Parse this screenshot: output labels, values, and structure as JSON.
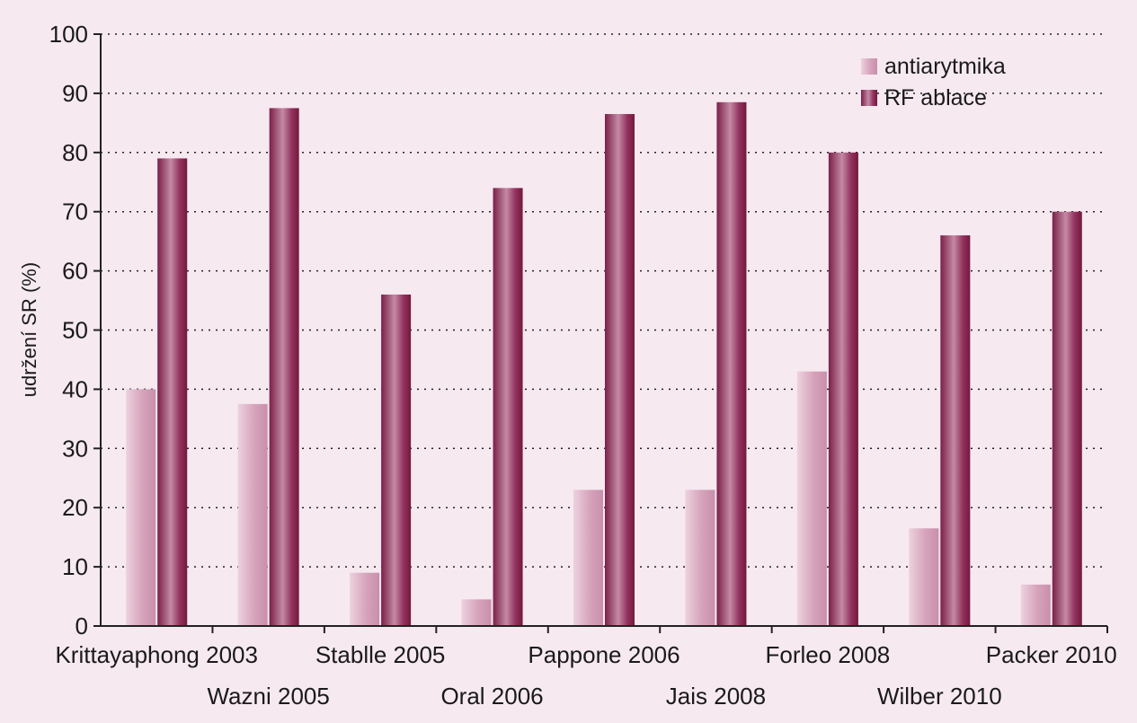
{
  "chart_data": {
    "type": "bar",
    "title": "",
    "xlabel": "",
    "ylabel": "udržení SR (%)",
    "ylim": [
      0,
      100
    ],
    "yticks": [
      0,
      10,
      20,
      30,
      40,
      50,
      60,
      70,
      80,
      90,
      100
    ],
    "grid": true,
    "legend_position": "top-right",
    "categories": [
      "Krittayaphong 2003",
      "Wazni 2005",
      "Stablle 2005",
      "Oral 2006",
      "Pappone 2006",
      "Jais 2008",
      "Forleo 2008",
      "Wilber 2010",
      "Packer 2010"
    ],
    "series": [
      {
        "name": "antiarytmika",
        "color": "#d9a9bf",
        "values": [
          40,
          37.5,
          9,
          4.5,
          23,
          23,
          43,
          16.5,
          7
        ]
      },
      {
        "name": "RF ablace",
        "color": "#93335e",
        "values": [
          79,
          87.5,
          56,
          74,
          86.5,
          88.5,
          80,
          66,
          70
        ]
      }
    ]
  }
}
